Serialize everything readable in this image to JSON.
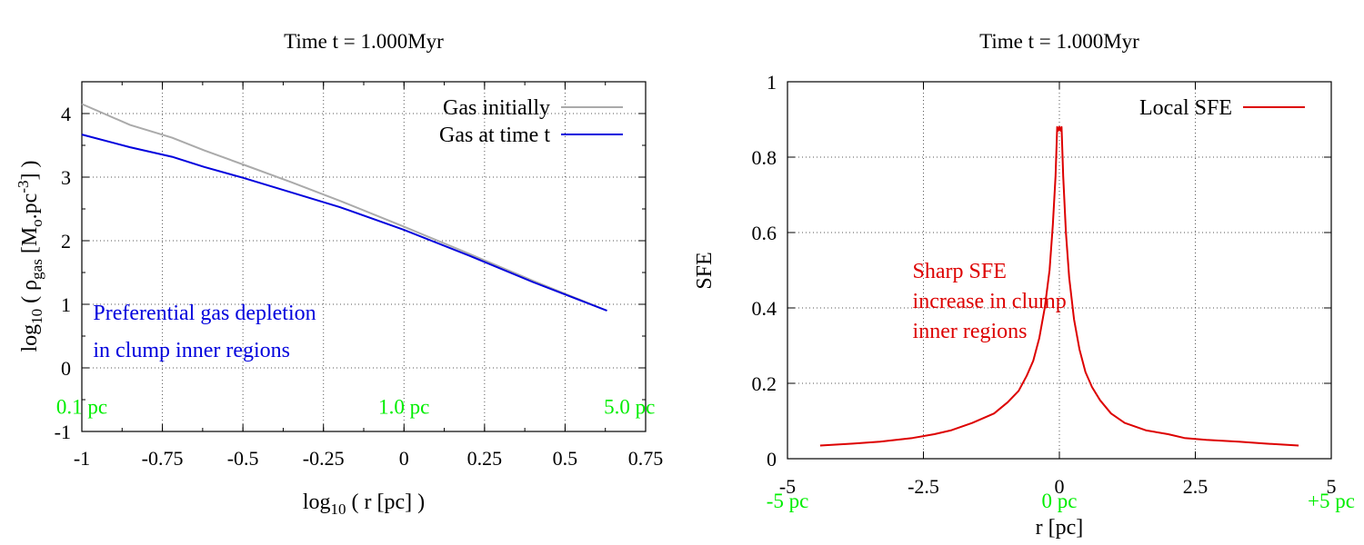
{
  "chart_data": [
    {
      "type": "line",
      "title": "Time t = 1.000Myr",
      "xlabel": {
        "prefix": "log",
        "sub": "10",
        "rest": " ( r [pc] )"
      },
      "ylabel": {
        "prefix": "log",
        "sub10": "10",
        "mid": " ( ρ",
        "subgas": "gas",
        "unit": " [M",
        "subo": "o",
        "unit2": ".pc",
        "sup": "-3",
        "end": "] )"
      },
      "xlim": [
        -1,
        0.75
      ],
      "ylim": [
        -1,
        4.5
      ],
      "xticks": [
        -1,
        -0.75,
        -0.5,
        -0.25,
        0,
        0.25,
        0.5,
        0.75
      ],
      "xtick_labels": [
        "-1",
        "-0.75",
        "-0.5",
        "-0.25",
        "0",
        "0.25",
        "0.5",
        "0.75"
      ],
      "yticks": [
        -1,
        0,
        1,
        2,
        3,
        4
      ],
      "ytick_labels": [
        "-1",
        "0",
        "1",
        "2",
        "3",
        "4"
      ],
      "grid": true,
      "legend_position": "top-right",
      "series": [
        {
          "name": "Gas initially",
          "color": "#aaaaaa",
          "x": [
            -1.0,
            -0.85,
            -0.72,
            -0.62,
            -0.5,
            -0.35,
            -0.2,
            0.0,
            0.2,
            0.4,
            0.63
          ],
          "y": [
            4.15,
            3.82,
            3.62,
            3.42,
            3.2,
            2.92,
            2.63,
            2.22,
            1.8,
            1.37,
            0.9
          ]
        },
        {
          "name": "Gas at time t",
          "color": "#0000dd",
          "x": [
            -1.0,
            -0.85,
            -0.72,
            -0.62,
            -0.5,
            -0.35,
            -0.2,
            0.0,
            0.2,
            0.4,
            0.63
          ],
          "y": [
            3.67,
            3.47,
            3.32,
            3.16,
            2.99,
            2.76,
            2.53,
            2.17,
            1.77,
            1.35,
            0.9
          ]
        }
      ],
      "annotations": [
        {
          "text": "Preferential gas depletion",
          "color": "#0000dd",
          "x": -0.965,
          "y": 0.76
        },
        {
          "text": "in clump inner regions",
          "color": "#0000dd",
          "x": -0.965,
          "y": 0.17
        }
      ],
      "scale_labels": [
        {
          "text": "0.1 pc",
          "color": "#00ee00",
          "x": -1.0,
          "y": -0.72
        },
        {
          "text": "1.0 pc",
          "color": "#00ee00",
          "x": 0.0,
          "y": -0.72
        },
        {
          "text": "5.0 pc",
          "color": "#00ee00",
          "x": 0.7,
          "y": -0.72
        }
      ]
    },
    {
      "type": "line",
      "title": "Time t = 1.000Myr",
      "xlabel": "r [pc]",
      "ylabel": "SFE",
      "xlim": [
        -5,
        5
      ],
      "ylim": [
        0,
        1
      ],
      "xticks": [
        -5,
        -2.5,
        0,
        2.5,
        5
      ],
      "xtick_labels": [
        "-5",
        "-2.5",
        "0",
        "2.5",
        "5"
      ],
      "yticks": [
        0,
        0.2,
        0.4,
        0.6,
        0.8,
        1
      ],
      "ytick_labels": [
        "0",
        "0.2",
        "0.4",
        "0.6",
        "0.8",
        "1"
      ],
      "grid": true,
      "legend_position": "top-right",
      "series": [
        {
          "name": "Local SFE",
          "color": "#dd0000",
          "x": [
            -4.4,
            -3.8,
            -3.3,
            -2.7,
            -2.3,
            -2.0,
            -1.6,
            -1.2,
            -0.95,
            -0.75,
            -0.6,
            -0.48,
            -0.37,
            -0.27,
            -0.18,
            -0.12,
            -0.07,
            -0.04,
            -0.02,
            0.0,
            0.02,
            0.04,
            0.07,
            0.12,
            0.18,
            0.27,
            0.37,
            0.48,
            0.6,
            0.75,
            0.95,
            1.2,
            1.6,
            2.0,
            2.3,
            2.7,
            3.3,
            3.8,
            4.4
          ],
          "y": [
            0.035,
            0.04,
            0.045,
            0.055,
            0.065,
            0.075,
            0.095,
            0.12,
            0.15,
            0.18,
            0.22,
            0.26,
            0.32,
            0.4,
            0.5,
            0.62,
            0.75,
            0.88,
            0.87,
            0.88,
            0.87,
            0.88,
            0.75,
            0.6,
            0.48,
            0.37,
            0.29,
            0.23,
            0.19,
            0.155,
            0.12,
            0.095,
            0.075,
            0.065,
            0.055,
            0.05,
            0.045,
            0.04,
            0.035
          ]
        }
      ],
      "annotations": [
        {
          "text": "Sharp SFE",
          "color": "#dd0000",
          "x": -2.7,
          "y": 0.48
        },
        {
          "text": "increase in clump",
          "color": "#dd0000",
          "x": -2.7,
          "y": 0.4
        },
        {
          "text": "inner regions",
          "color": "#dd0000",
          "x": -2.7,
          "y": 0.32
        }
      ],
      "scale_labels": [
        {
          "text": "-5 pc",
          "color": "#00ee00",
          "x": -5.0,
          "y": -0.13
        },
        {
          "text": "0 pc",
          "color": "#00ee00",
          "x": 0.0,
          "y": -0.13
        },
        {
          "text": "+5 pc",
          "color": "#00ee00",
          "x": 5.0,
          "y": -0.13
        }
      ]
    }
  ]
}
